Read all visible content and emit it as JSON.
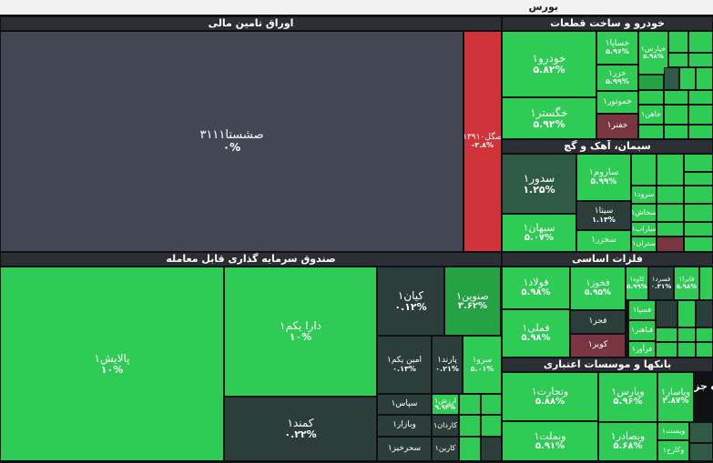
{
  "chart_data": {
    "type": "treemap",
    "title": "بورس",
    "colors": {
      "dark_gray": "#434753",
      "green": "#2ecc55",
      "mid_green": "#25a244",
      "dark_green": "#2f5a45",
      "slate": "#2c3e3c",
      "red": "#d13438",
      "dark_red": "#7a3640"
    },
    "groups": [
      {
        "name": "اوراق تامین مالی",
        "tiles": [
          {
            "name": "صشستا۳۱۱۱",
            "change": "۰%",
            "color": "dark_gray"
          },
          {
            "name": "صگل۱۳۹۱۰",
            "change": "-۳.۸%",
            "color": "red"
          }
        ]
      },
      {
        "name": "صندوق سرمایه گذاری قابل معامله",
        "tiles": [
          {
            "name": "پالایش۱",
            "change": "۱۰%",
            "color": "green"
          },
          {
            "name": "دارا یکم۱",
            "change": "۱۰%",
            "color": "green"
          },
          {
            "name": "کمند۱",
            "change": "۰.۲۲%",
            "color": "slate"
          },
          {
            "name": "کیان۱",
            "change": "۰.۱۲%",
            "color": "slate"
          },
          {
            "name": "صنوین۱",
            "change": "۳.۶۲%",
            "color": "mid_green"
          },
          {
            "name": "امین یکم۱",
            "change": "۰.۱۳%",
            "color": "slate"
          },
          {
            "name": "پارند۱",
            "change": "۰.۲۱%",
            "color": "slate"
          },
          {
            "name": "سرو۱",
            "change": "۵.۰۱%",
            "color": "green"
          },
          {
            "name": "سپاس۱",
            "change": "",
            "color": "slate"
          },
          {
            "name": "ارزش۱",
            "change": "۹.۹۴%",
            "color": "green"
          },
          {
            "name": "وبازار۱",
            "change": "",
            "color": "slate"
          },
          {
            "name": "کاردان۱",
            "change": "",
            "color": "slate"
          },
          {
            "name": "سحرخیز۱",
            "change": "",
            "color": "slate"
          },
          {
            "name": "کارین۱",
            "change": "",
            "color": "slate"
          }
        ]
      },
      {
        "name": "خودرو و ساخت قطعات",
        "tiles": [
          {
            "name": "خودرو۱",
            "change": "۵.۸۲%",
            "color": "green"
          },
          {
            "name": "خگستر۱",
            "change": "۵.۹۲%",
            "color": "green"
          },
          {
            "name": "خساپا۱",
            "change": "۵.۹۶%",
            "color": "green"
          },
          {
            "name": "خزر۱",
            "change": "۵.۹۹%",
            "color": "green"
          },
          {
            "name": "خموتور۱",
            "change": "",
            "color": "green"
          },
          {
            "name": "خفنر۱",
            "change": "",
            "color": "dark_red"
          },
          {
            "name": "خپارس۱",
            "change": "۵.۹۸%",
            "color": "green"
          },
          {
            "name": "خاهن۱",
            "change": "",
            "color": "green"
          }
        ]
      },
      {
        "name": "سیمان، آهک و گچ",
        "tiles": [
          {
            "name": "سدور۱",
            "change": "۱.۲۵%",
            "color": "dark_green"
          },
          {
            "name": "سبهان۱",
            "change": "۵.۰۷%",
            "color": "green"
          },
          {
            "name": "ساروم۱",
            "change": "۵.۹۹%",
            "color": "green"
          },
          {
            "name": "سیتا۱",
            "change": "۱.۱۳%",
            "color": "slate"
          },
          {
            "name": "سخزر۱",
            "change": "",
            "color": "green"
          },
          {
            "name": "سرود۱",
            "change": "",
            "color": "green"
          },
          {
            "name": "سخاش۱",
            "change": "",
            "color": "green"
          },
          {
            "name": "ساراب۱",
            "change": "",
            "color": "green"
          },
          {
            "name": "ستران۱",
            "change": "",
            "color": "green"
          }
        ]
      },
      {
        "name": "فلزات اساسی",
        "tiles": [
          {
            "name": "فولاد۱",
            "change": "۵.۹۸%",
            "color": "green"
          },
          {
            "name": "فملی۱",
            "change": "۵.۹۸%",
            "color": "green"
          },
          {
            "name": "فخوز۱",
            "change": "۵.۹۵%",
            "color": "green"
          },
          {
            "name": "فجر۱",
            "change": "",
            "color": "slate"
          },
          {
            "name": "کویر۱",
            "change": "",
            "color": "dark_red"
          },
          {
            "name": "کاوه۱",
            "change": "۵.۹۹%",
            "color": "green"
          },
          {
            "name": "فسرد۱",
            "change": "۰.۳۱%",
            "color": "slate"
          },
          {
            "name": "فایرا۱",
            "change": "۵.۹۸%",
            "color": "green"
          },
          {
            "name": "فسپا۱",
            "change": "",
            "color": "green"
          },
          {
            "name": "فباهنر۱",
            "change": "",
            "color": "green"
          },
          {
            "name": "فرآور۱",
            "change": "",
            "color": "green"
          }
        ]
      },
      {
        "name": "بانکها و موسسات اعتباری",
        "tiles": [
          {
            "name": "وتجارت۱",
            "change": "۵.۸۸%",
            "color": "green"
          },
          {
            "name": "وبملت۱",
            "change": "۵.۹۱%",
            "color": "green"
          },
          {
            "name": "وپارس۱",
            "change": "۵.۹۶%",
            "color": "green"
          },
          {
            "name": "وبصادر۱",
            "change": "۵.۶۸%",
            "color": "green"
          },
          {
            "name": "وپاسار۱",
            "change": "۳.۸۷%",
            "color": "green"
          },
          {
            "name": "وبست۱",
            "change": "",
            "color": "green"
          },
          {
            "name": "وکارح۱",
            "change": "",
            "color": "green"
          }
        ]
      }
    ]
  },
  "clipped_label": "ه جز"
}
